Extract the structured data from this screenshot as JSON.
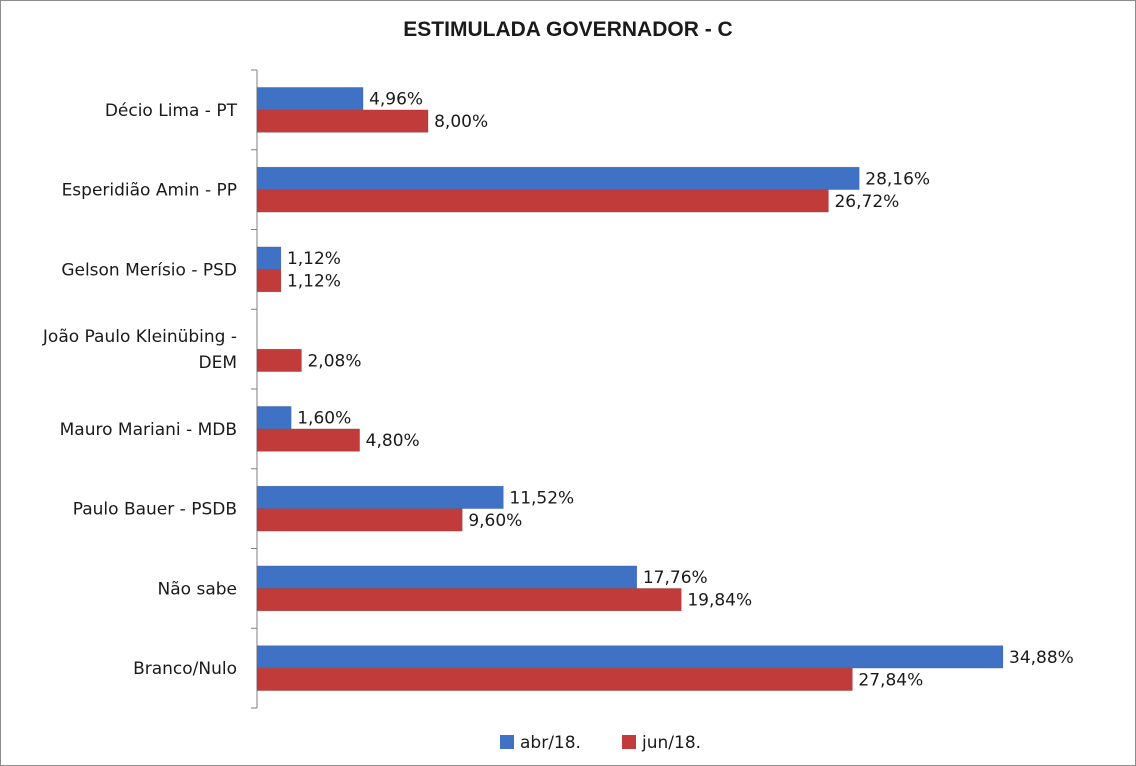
{
  "chart_data": {
    "type": "bar",
    "orientation": "horizontal",
    "title": "ESTIMULADA GOVERNADOR - C",
    "categories": [
      [
        "Décio Lima - PT"
      ],
      [
        "Esperidião Amin - PP"
      ],
      [
        "Gelson Merísio - PSD"
      ],
      [
        "João Paulo Kleinübing -",
        "DEM"
      ],
      [
        "Mauro Mariani - MDB"
      ],
      [
        "Paulo Bauer - PSDB"
      ],
      [
        "Não sabe"
      ],
      [
        "Branco/Nulo"
      ]
    ],
    "series": [
      {
        "name": "abr/18.",
        "color": "#3f72c4",
        "values": [
          4.96,
          28.16,
          1.12,
          null,
          1.6,
          11.52,
          17.76,
          34.88
        ],
        "labels": [
          "4,96%",
          "28,16%",
          "1,12%",
          "",
          "1,60%",
          "11,52%",
          "17,76%",
          "34,88%"
        ]
      },
      {
        "name": "jun/18.",
        "color": "#c23b3b",
        "values": [
          8.0,
          26.72,
          1.12,
          2.08,
          4.8,
          9.6,
          19.84,
          27.84
        ],
        "labels": [
          "8,00%",
          "26,72%",
          "1,12%",
          "2,08%",
          "4,80%",
          "9,60%",
          "19,84%",
          "27,84%"
        ]
      }
    ],
    "xlim": [
      0,
      35
    ],
    "grid": false,
    "legend": "bottom"
  }
}
